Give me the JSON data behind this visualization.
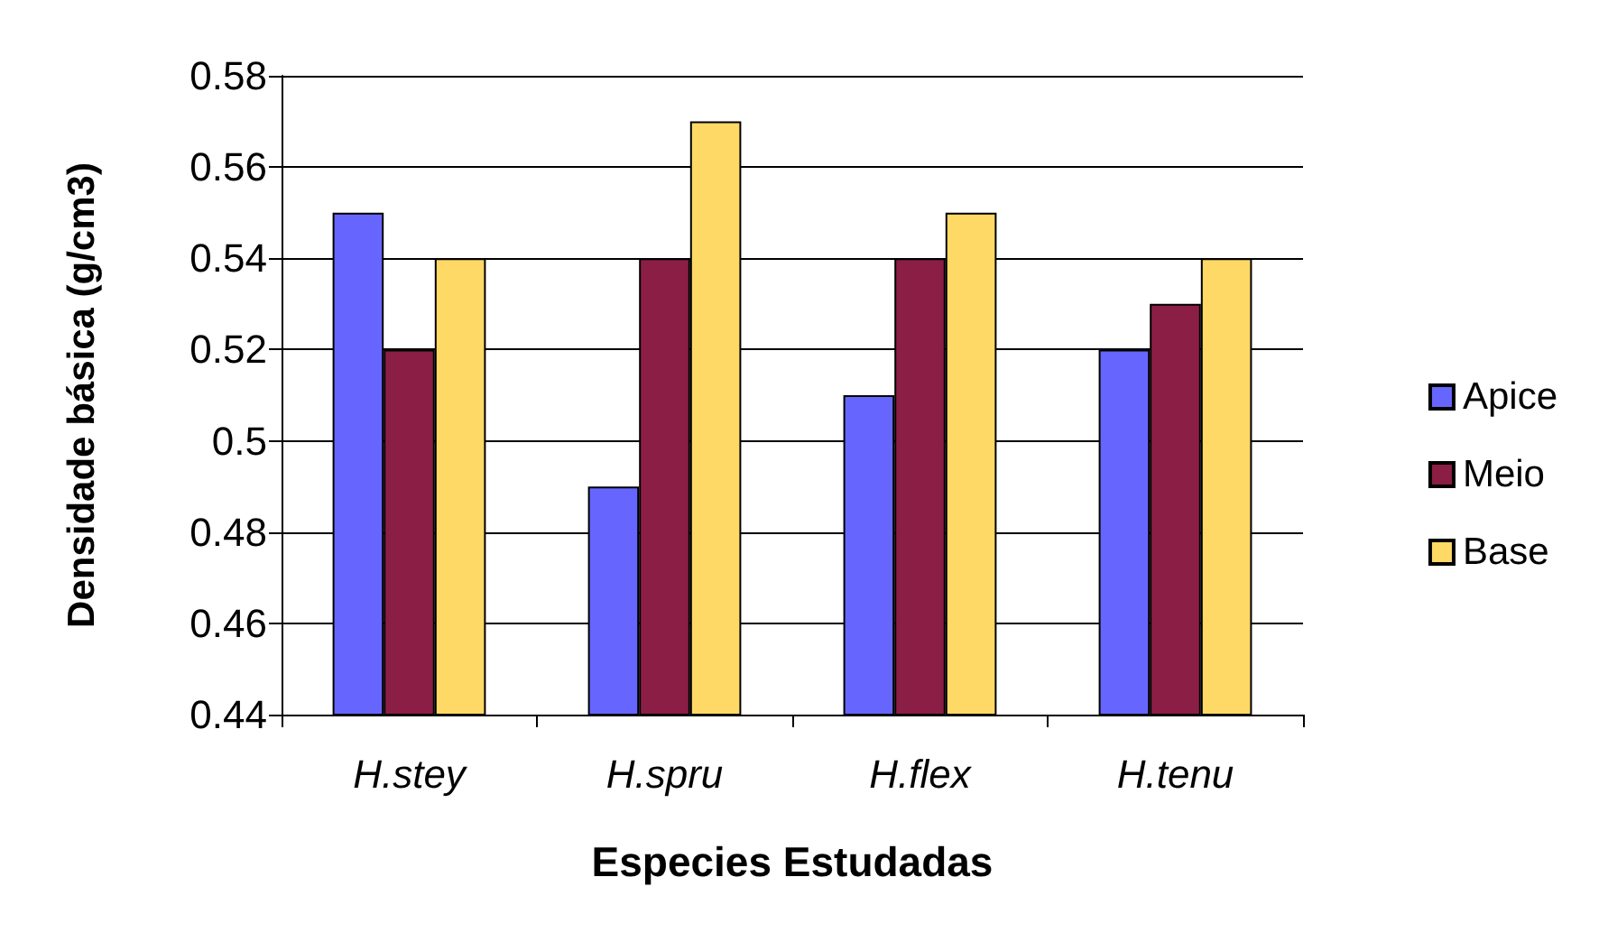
{
  "chart_data": {
    "type": "bar",
    "xlabel": "Especies Estudadas",
    "ylabel": "Densidade básica (g/cm3)",
    "categories": [
      "H.stey",
      "H.spru",
      "H.flex",
      "H.tenu"
    ],
    "series": [
      {
        "name": "Apice",
        "color": "#6666ff",
        "values": [
          0.55,
          0.49,
          0.51,
          0.52
        ]
      },
      {
        "name": "Meio",
        "color": "#8b1e44",
        "values": [
          0.52,
          0.54,
          0.54,
          0.53
        ]
      },
      {
        "name": "Base",
        "color": "#ffd966",
        "values": [
          0.54,
          0.57,
          0.55,
          0.54
        ]
      }
    ],
    "ylim": [
      0.44,
      0.58
    ],
    "yticks": [
      0.44,
      0.46,
      0.48,
      0.5,
      0.52,
      0.54,
      0.56,
      0.58
    ],
    "grid": "y",
    "legend": "right"
  }
}
